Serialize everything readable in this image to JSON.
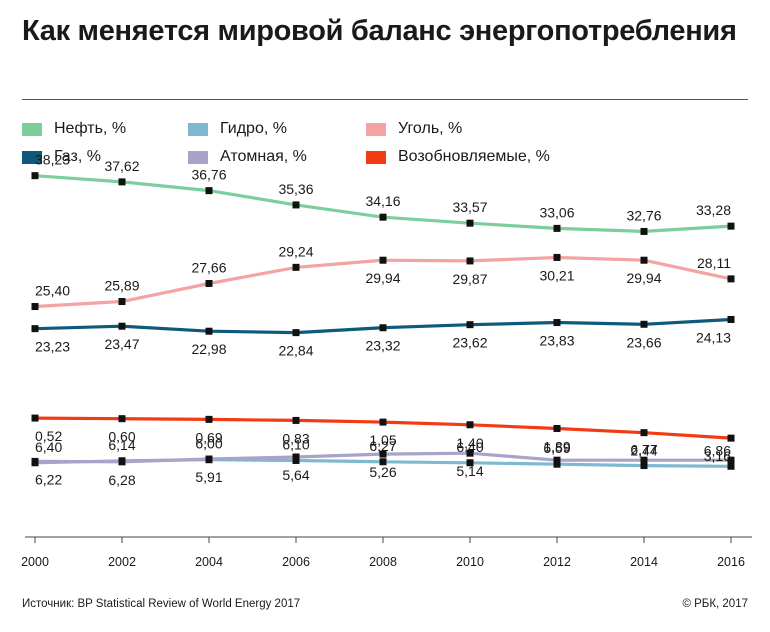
{
  "title": "Как меняется мировой баланс энергопотребления",
  "source": "Источник: BP Statistical Review of World Energy 2017",
  "copyright": "© РБК, 2017",
  "chart_data": {
    "type": "line",
    "categories": [
      "2000",
      "2002",
      "2004",
      "2006",
      "2008",
      "2010",
      "2012",
      "2014",
      "2016"
    ],
    "series": [
      {
        "name": "Нефть, %",
        "color": "#7ccf9c",
        "values": [
          38.23,
          37.62,
          36.76,
          35.36,
          34.16,
          33.57,
          33.06,
          32.76,
          33.28
        ],
        "labels": [
          "38,23",
          "37,62",
          "36,76",
          "35,36",
          "34,16",
          "33,57",
          "33,06",
          "32,76",
          "33,28"
        ]
      },
      {
        "name": "Гидро, %",
        "color": "#7fb9cf",
        "values": [
          6.4,
          6.14,
          6.0,
          6.1,
          6.27,
          6.4,
          6.59,
          6.77,
          6.86
        ],
        "labels": [
          "6,40",
          "6,14",
          "6,00",
          "6,10",
          "6,27",
          "6,40",
          "6,59",
          "6,77",
          "6,86"
        ]
      },
      {
        "name": "Уголь, %",
        "color": "#f4a3a3",
        "values": [
          25.4,
          25.89,
          27.66,
          29.24,
          29.94,
          29.87,
          30.21,
          29.94,
          28.11
        ],
        "labels": [
          "25,40",
          "25,89",
          "27,66",
          "29,24",
          "29,94",
          "29,87",
          "30,21",
          "29,94",
          "28,11"
        ]
      },
      {
        "name": "Газ, %",
        "color": "#0d5a7c",
        "values": [
          23.23,
          23.47,
          22.98,
          22.84,
          23.32,
          23.62,
          23.83,
          23.66,
          24.13
        ],
        "labels": [
          "23,23",
          "23,47",
          "22,98",
          "22,84",
          "23,32",
          "23,62",
          "23,83",
          "23,66",
          "24,13"
        ]
      },
      {
        "name": "Атомная, %",
        "color": "#a8a3c9",
        "values": [
          6.22,
          6.28,
          5.91,
          5.64,
          5.26,
          5.14,
          null,
          null,
          null
        ],
        "labels": [
          "6,22",
          "6,28",
          "5,91",
          "5,64",
          "5,26",
          "5,14",
          "",
          "",
          ""
        ]
      },
      {
        "name": "Возобновляемые, %",
        "color": "#f23b12",
        "values": [
          0.52,
          0.6,
          0.69,
          0.83,
          1.05,
          1.4,
          1.89,
          2.44,
          3.16
        ],
        "labels": [
          "0,52",
          "0,60",
          "0,69",
          "0,83",
          "1,05",
          "1,40",
          "1,89",
          "2,44",
          "3,16"
        ]
      }
    ],
    "marker_color": "#111111",
    "legend_position": "top",
    "grid": false
  }
}
